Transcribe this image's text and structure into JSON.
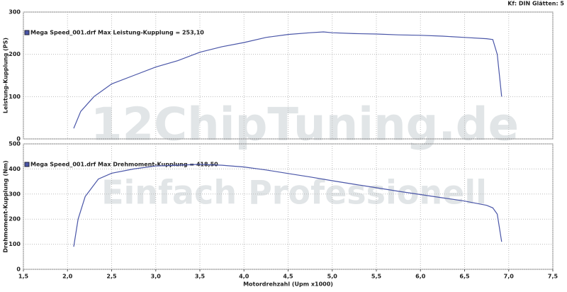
{
  "header": "Kf: DIN  Glätten: 5",
  "watermark": [
    "12ChipTuning.de",
    "Einfach Professionell"
  ],
  "chart_data": [
    {
      "type": "line",
      "y_label": "Leistung-Kupplung (PS)",
      "xlim": [
        1.5,
        7.5
      ],
      "ylim": [
        0,
        300
      ],
      "yticks": [
        0,
        100,
        200,
        300
      ],
      "grid": true,
      "x": [
        2.07,
        2.15,
        2.3,
        2.5,
        2.75,
        3.0,
        3.25,
        3.5,
        3.75,
        4.0,
        4.25,
        4.5,
        4.75,
        4.9,
        5.0,
        5.25,
        5.5,
        5.75,
        6.0,
        6.25,
        6.5,
        6.75,
        6.82,
        6.87,
        6.92
      ],
      "series": [
        {
          "name": "Mega Speed_001.drf Max Leistung-Kupplung = 253,10",
          "color": "#4a56a8",
          "values": [
            25,
            65,
            100,
            130,
            150,
            170,
            185,
            205,
            218,
            228,
            240,
            247,
            251,
            253,
            251,
            249,
            248,
            246,
            245,
            243,
            240,
            237,
            235,
            200,
            100
          ]
        }
      ]
    },
    {
      "type": "line",
      "x_label": "Motordrehzahl (Upm x1000)",
      "y_label": "Drehmoment-Kupplung (Nm)",
      "xlim": [
        1.5,
        7.5
      ],
      "xticks": [
        {
          "value": 1.5,
          "label": "1,5"
        },
        {
          "value": 2.0,
          "label": "2,0"
        },
        {
          "value": 2.5,
          "label": "2,5"
        },
        {
          "value": 3.0,
          "label": "3,0"
        },
        {
          "value": 3.5,
          "label": "3,5"
        },
        {
          "value": 4.0,
          "label": "4,0"
        },
        {
          "value": 4.5,
          "label": "4,5"
        },
        {
          "value": 5.0,
          "label": "5,0"
        },
        {
          "value": 5.5,
          "label": "5,5"
        },
        {
          "value": 6.0,
          "label": "6,0"
        },
        {
          "value": 6.5,
          "label": "6,5"
        },
        {
          "value": 7.0,
          "label": "7,0"
        },
        {
          "value": 7.5,
          "label": "7,5"
        }
      ],
      "ylim": [
        0,
        500
      ],
      "yticks": [
        0,
        100,
        200,
        300,
        400,
        500
      ],
      "grid": true,
      "x": [
        2.07,
        2.12,
        2.2,
        2.35,
        2.5,
        2.75,
        3.0,
        3.25,
        3.5,
        3.75,
        4.0,
        4.25,
        4.5,
        4.75,
        5.0,
        5.25,
        5.5,
        5.75,
        6.0,
        6.25,
        6.5,
        6.75,
        6.82,
        6.87,
        6.92
      ],
      "series": [
        {
          "name": "Mega Speed_001.drf Max Drehmoment-Kupplung = 418,50",
          "color": "#4a56a8",
          "values": [
            90,
            200,
            290,
            360,
            383,
            400,
            412,
            415,
            418.5,
            415,
            408,
            396,
            382,
            368,
            353,
            339,
            325,
            311,
            298,
            285,
            272,
            255,
            245,
            220,
            110
          ]
        }
      ]
    }
  ]
}
